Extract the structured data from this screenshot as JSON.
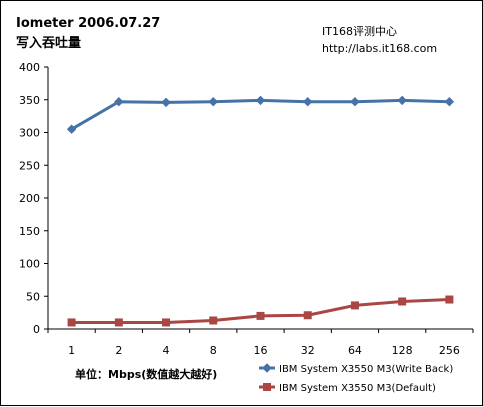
{
  "chart_data": {
    "type": "line",
    "title": "Iometer 2006.07.27",
    "subtitle": "写入吞吐量",
    "watermark": [
      "IT168评测中心",
      "http://labs.it168.com"
    ],
    "xlabel": "单位：Mbps(数值越大越好)",
    "ylabel": "",
    "categories": [
      "1",
      "2",
      "4",
      "8",
      "16",
      "32",
      "64",
      "128",
      "256"
    ],
    "ylim": [
      0,
      400
    ],
    "yticks": [
      0,
      50,
      100,
      150,
      200,
      250,
      300,
      350,
      400
    ],
    "grid": false,
    "legend_position": "bottom-right",
    "series": [
      {
        "name": "IBM System X3550 M3(Write Back)",
        "color": "#4572A7",
        "marker": "diamond",
        "values": [
          305,
          347,
          346,
          347,
          349,
          347,
          347,
          349,
          347
        ]
      },
      {
        "name": "IBM System X3550 M3(Default)",
        "color": "#AA4643",
        "marker": "square",
        "values": [
          10,
          10,
          10,
          13,
          20,
          21,
          36,
          42,
          45
        ]
      }
    ]
  }
}
